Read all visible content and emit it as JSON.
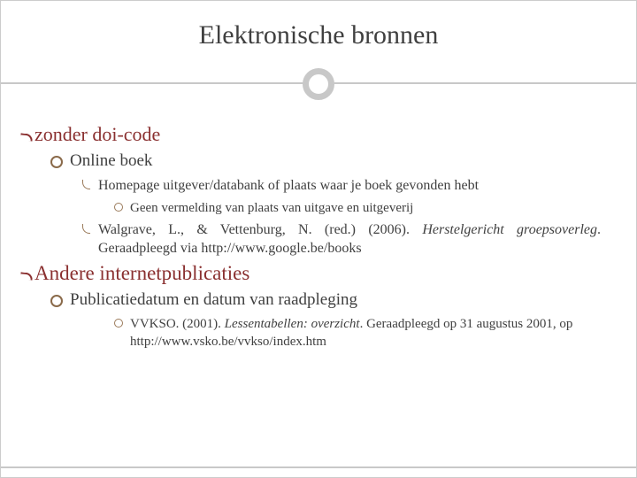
{
  "colors": {
    "text": "#3a3a3a",
    "heading_accent": "#8a3030",
    "rule": "#c8c8c8",
    "bullet_ring": "#8a6a4a",
    "background": "#ffffff"
  },
  "typography": {
    "font_family": "Georgia, serif",
    "title_fontsize": 30,
    "l1_fontsize": 22,
    "l2_fontsize": 19,
    "l3_fontsize": 16,
    "l4_fontsize": 15
  },
  "title": "Elektronische bronnen",
  "section1": {
    "heading": "zonder doi-code",
    "sub1": "Online boek",
    "p1": "Homepage uitgever/databank of plaats waar je boek gevonden hebt",
    "p1a": "Geen vermelding van plaats van uitgave en uitgeverij",
    "p2_plain": "Walgrave, L., & Vettenburg, N. (red.) (2006). ",
    "p2_italic": "Herstelgericht groepsoverleg",
    "p2_tail": ". Geraadpleegd via http://www.google.be/books"
  },
  "section2": {
    "heading": "Andere internetpublicaties",
    "sub1": "Publicatiedatum en datum van raadpleging",
    "p1_plain": "VVKSO. (2001). ",
    "p1_italic": "Lessentabellen: overzicht",
    "p1_tail": ". Geraadpleegd op 31 augustus 2001, op http://www.vsko.be/vvkso/index.htm"
  }
}
